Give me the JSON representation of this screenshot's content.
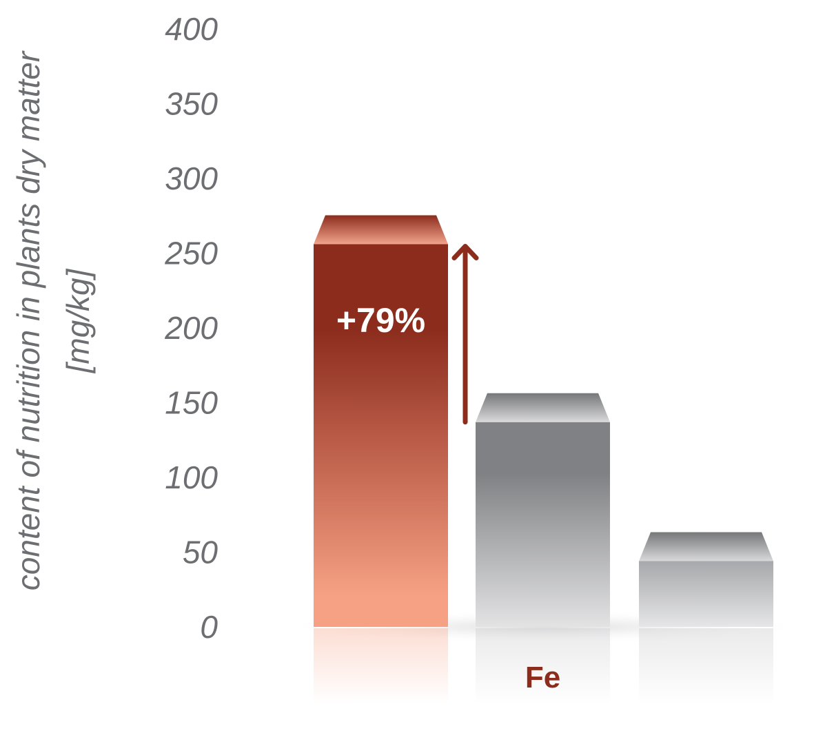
{
  "chart_data": {
    "type": "bar",
    "category": "Fe",
    "values": [
      256,
      137,
      44
    ],
    "ylabel_lines": [
      "content of nutrition in plants dry matter",
      "[mg/kg]"
    ],
    "yticks": [
      0,
      50,
      100,
      150,
      200,
      250,
      300,
      350,
      400
    ],
    "ylim": [
      0,
      400
    ],
    "annotation": "+79%",
    "grid": false,
    "colors": {
      "bar_1": "#8b2c1d",
      "bar_1_light": "#f6a184",
      "bar_gray": "#808184",
      "bar_gray_light": "#e3e3e4",
      "category": "#8b2c1d",
      "arrow": "#8b2c1d",
      "ticks": "#6d6e71"
    }
  }
}
